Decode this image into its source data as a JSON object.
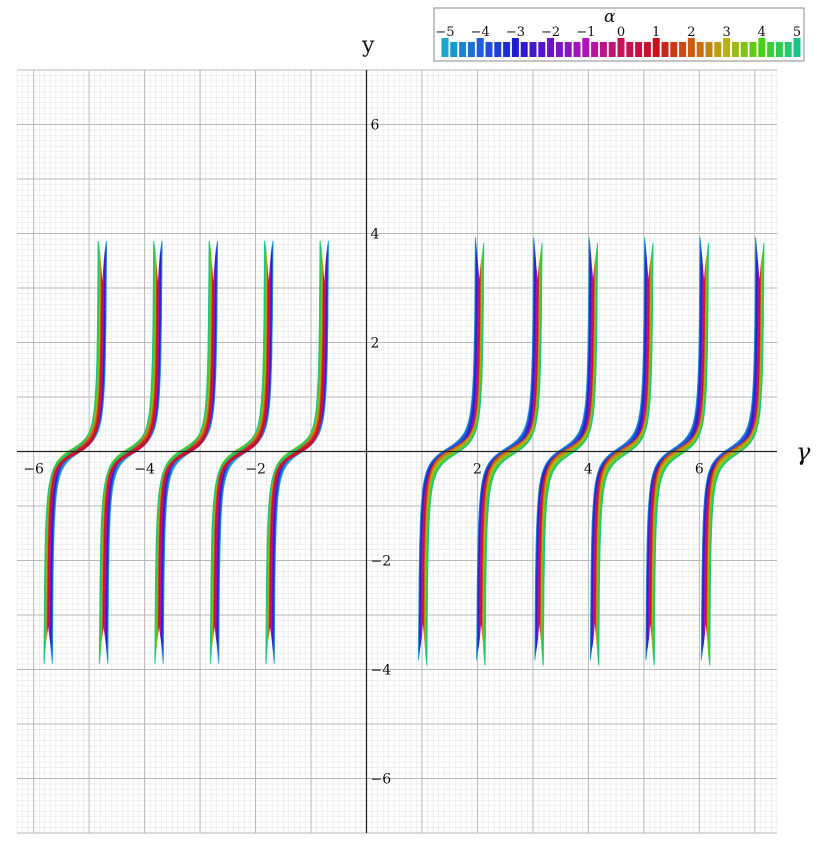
{
  "chart_data": {
    "type": "line",
    "title": "",
    "xlabel": "γ",
    "ylabel": "y",
    "xlim": [
      -6.3,
      7.4
    ],
    "ylim": [
      -7,
      7
    ],
    "x_ticks": [
      -6,
      -4,
      -2,
      2,
      4,
      6
    ],
    "x_tick_labels": [
      "−6",
      "−4",
      "−2",
      "2",
      "4",
      "6"
    ],
    "y_ticks": [
      6,
      4,
      2,
      -2,
      -4,
      -6
    ],
    "y_tick_labels": [
      "6",
      "4",
      "2",
      "−2",
      "−4",
      "−6"
    ],
    "grid": true,
    "family": {
      "parameter": "α",
      "range": [
        -5,
        5
      ],
      "count": 41,
      "description_shape": "tan-like branches between vertical asymptotes for each α",
      "asymptotes_positive_gamma": [
        1.0,
        2.05,
        3.1,
        4.1,
        5.1,
        6.1,
        7.1
      ],
      "asymptotes_negative_gamma": [
        -5.75,
        -4.75,
        -3.75,
        -2.75,
        -1.75,
        -0.75
      ]
    },
    "colorbar": {
      "title": "α",
      "min": -5,
      "max": 5,
      "ticks": [
        -5,
        -4,
        -3,
        -2,
        -1,
        0,
        1,
        2,
        3,
        4,
        5
      ],
      "tick_labels": [
        "−5",
        "−4",
        "−3",
        "−2",
        "−1",
        "0",
        "1",
        "2",
        "3",
        "4",
        "5"
      ],
      "colors": [
        "#1aa7cf",
        "#1e5fd8",
        "#1e1ecf",
        "#6a12c8",
        "#b014b8",
        "#c8125e",
        "#c8101e",
        "#d05a10",
        "#b8b210",
        "#48d018",
        "#12c88a"
      ]
    }
  }
}
